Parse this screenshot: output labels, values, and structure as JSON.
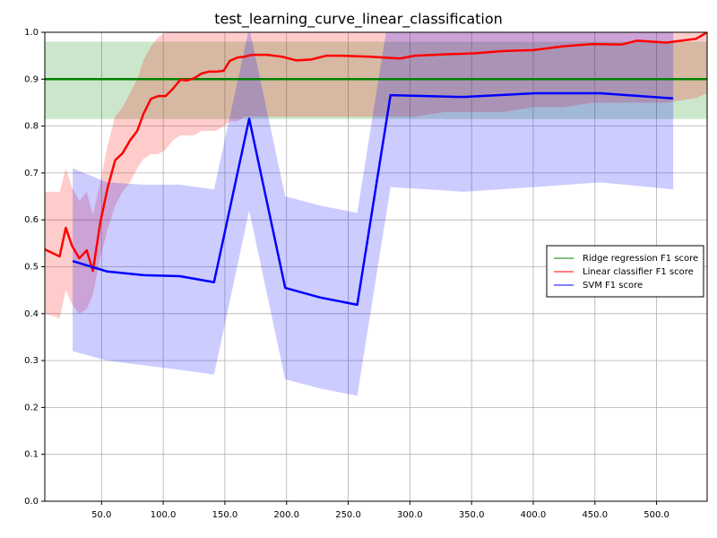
{
  "chart_data": {
    "type": "line",
    "title": "test_learning_curve_linear_classification",
    "xlim": [
      4,
      541
    ],
    "ylim": [
      0,
      1
    ],
    "xticks": [
      {
        "value": 50,
        "label": "50.0"
      },
      {
        "value": 100,
        "label": "100.0"
      },
      {
        "value": 150,
        "label": "150.0"
      },
      {
        "value": 200,
        "label": "200.0"
      },
      {
        "value": 250,
        "label": "250.0"
      },
      {
        "value": 300,
        "label": "300.0"
      },
      {
        "value": 350,
        "label": "350.0"
      },
      {
        "value": 400,
        "label": "400.0"
      },
      {
        "value": 450,
        "label": "450.0"
      },
      {
        "value": 500,
        "label": "500.0"
      }
    ],
    "yticks": [
      {
        "value": 0,
        "label": "0.0"
      },
      0.1,
      0.2,
      0.3,
      0.4,
      0.5,
      0.6,
      0.7,
      0.8,
      0.9,
      {
        "value": 1,
        "label": "1.0"
      }
    ],
    "grid": true,
    "legend": "center right",
    "series": [
      {
        "name": "Ridge regression F1 score",
        "color": "#008000",
        "x": [
          4,
          541
        ],
        "values": [
          0.9,
          0.9
        ],
        "lower": [
          0.815,
          0.815
        ],
        "upper": [
          0.98,
          0.98
        ]
      },
      {
        "name": "Linear classifier F1 score",
        "color": "#ff0000",
        "x": [
          4,
          16,
          21,
          26,
          32,
          38,
          43,
          49,
          55,
          61,
          67,
          73,
          79,
          84,
          90,
          96,
          102,
          108,
          114,
          119,
          125,
          131,
          137,
          143,
          149,
          154,
          160,
          166,
          172,
          184,
          196,
          208,
          220,
          232,
          244,
          268,
          292,
          304,
          328,
          352,
          376,
          400,
          424,
          448,
          472,
          484,
          508,
          532,
          541
        ],
        "values": [
          0.537,
          0.522,
          0.583,
          0.545,
          0.518,
          0.535,
          0.491,
          0.595,
          0.669,
          0.727,
          0.742,
          0.769,
          0.79,
          0.826,
          0.858,
          0.864,
          0.864,
          0.88,
          0.899,
          0.897,
          0.902,
          0.912,
          0.916,
          0.916,
          0.918,
          0.939,
          0.946,
          0.948,
          0.952,
          0.952,
          0.948,
          0.94,
          0.942,
          0.95,
          0.95,
          0.948,
          0.944,
          0.95,
          0.953,
          0.955,
          0.96,
          0.962,
          0.97,
          0.975,
          0.974,
          0.982,
          0.978,
          0.986,
          1.0
        ],
        "lower": [
          0.4,
          0.39,
          0.45,
          0.42,
          0.4,
          0.41,
          0.44,
          0.52,
          0.58,
          0.63,
          0.66,
          0.68,
          0.71,
          0.73,
          0.74,
          0.74,
          0.75,
          0.77,
          0.78,
          0.78,
          0.78,
          0.79,
          0.79,
          0.79,
          0.8,
          0.81,
          0.81,
          0.82,
          0.82,
          0.82,
          0.82,
          0.82,
          0.82,
          0.82,
          0.82,
          0.82,
          0.82,
          0.82,
          0.83,
          0.83,
          0.83,
          0.84,
          0.84,
          0.85,
          0.85,
          0.85,
          0.85,
          0.86,
          0.87
        ],
        "upper": [
          0.66,
          0.66,
          0.71,
          0.67,
          0.64,
          0.66,
          0.61,
          0.68,
          0.76,
          0.82,
          0.84,
          0.87,
          0.9,
          0.94,
          0.97,
          0.99,
          1.0,
          1.02,
          1.04,
          1.05,
          1.05,
          1.05,
          1.05,
          1.05,
          1.05,
          1.05,
          1.05,
          1.05,
          1.05,
          1.05,
          1.05,
          1.05,
          1.05,
          1.05,
          1.05,
          1.05,
          1.05,
          1.05,
          1.05,
          1.05,
          1.05,
          1.05,
          1.05,
          1.05,
          1.05,
          1.05,
          1.05,
          1.05,
          1.05
        ]
      },
      {
        "name": "SVM F1 score",
        "color": "#0000ff",
        "x": [
          26.6,
          54.4,
          84.3,
          113.5,
          141.2,
          169.7,
          198.9,
          228,
          257.3,
          284.3,
          343.4,
          401.8,
          454.4,
          513.5
        ],
        "values": [
          0.512,
          0.49,
          0.482,
          0.48,
          0.467,
          0.816,
          0.455,
          0.434,
          0.419,
          0.866,
          0.862,
          0.87,
          0.87,
          0.859
        ],
        "lower": [
          0.32,
          0.3,
          0.29,
          0.28,
          0.27,
          0.62,
          0.26,
          0.24,
          0.225,
          0.67,
          0.66,
          0.67,
          0.68,
          0.665
        ],
        "upper": [
          0.71,
          0.68,
          0.675,
          0.675,
          0.665,
          1.01,
          0.65,
          0.63,
          0.615,
          1.06,
          1.06,
          1.07,
          1.06,
          1.05
        ]
      }
    ]
  }
}
